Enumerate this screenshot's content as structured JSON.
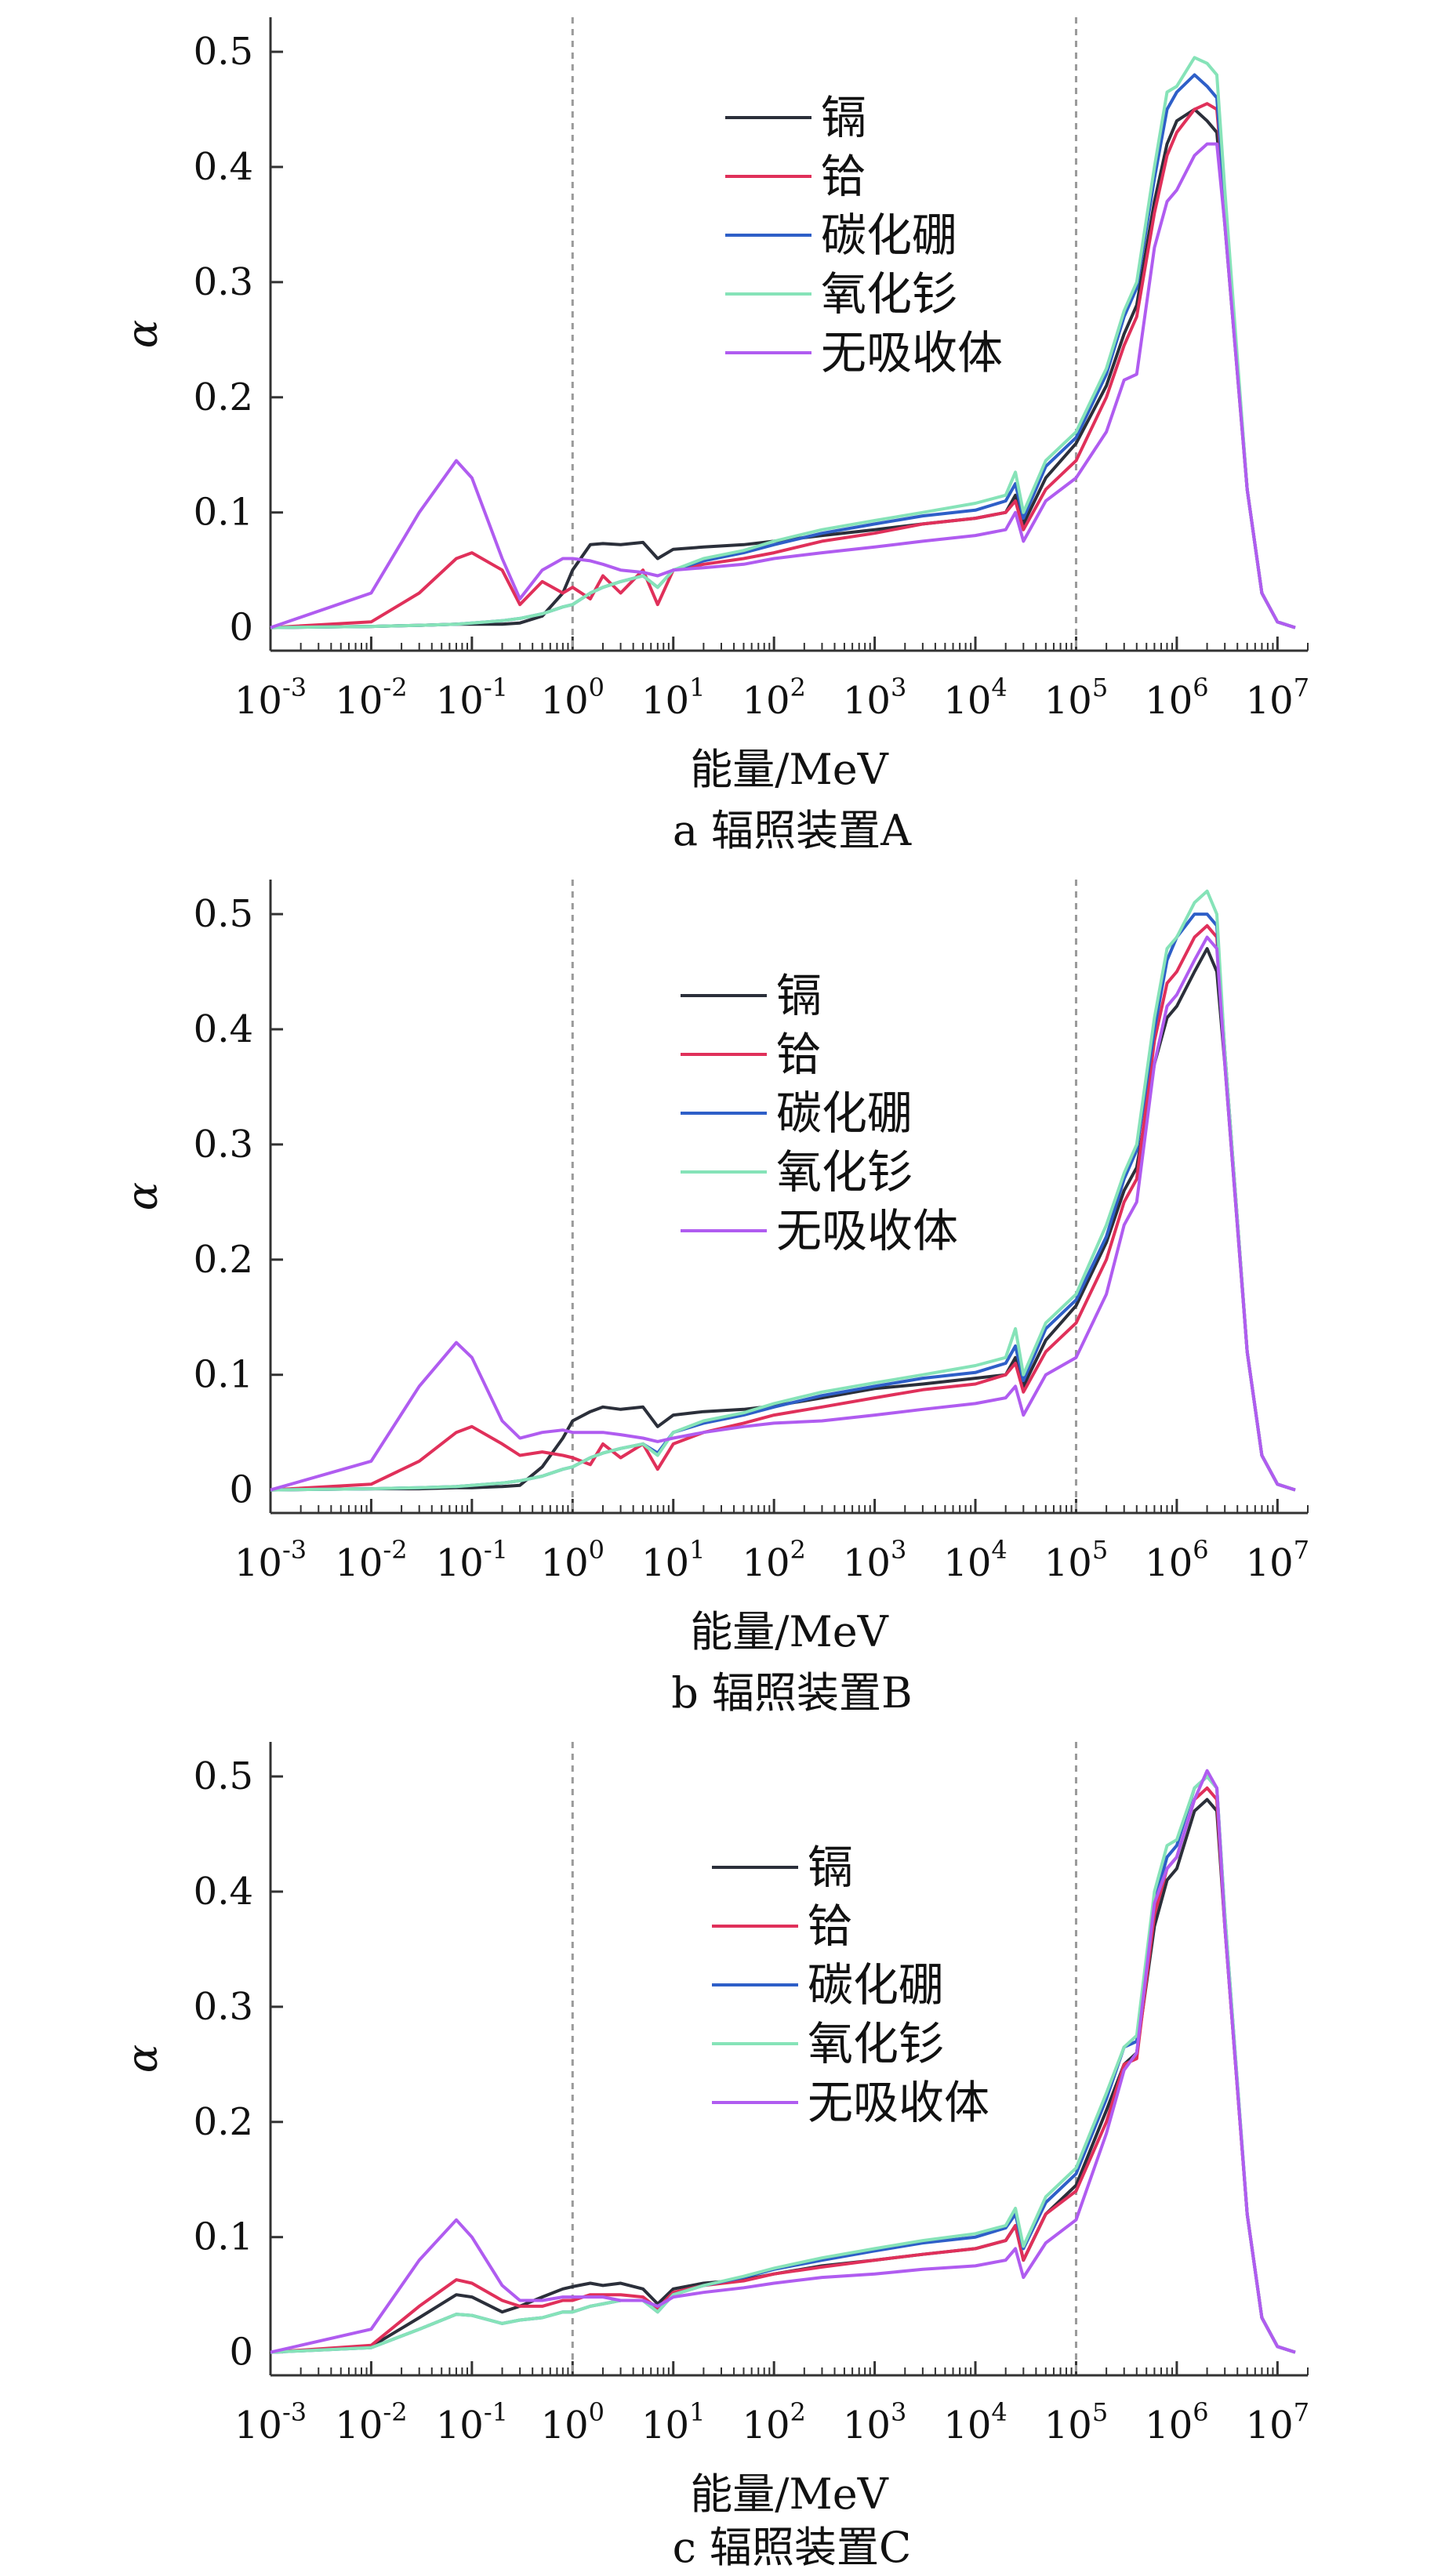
{
  "figure": {
    "colors": {
      "镉": "#2b2f3a",
      "铪": "#e0305a",
      "碳化硼": "#2e5fc8",
      "氧化钐": "#86e3b8",
      "无吸收体": "#b05cf0",
      "axis": "#333333",
      "reference_line": "#9a9a9a"
    }
  },
  "chart_data": [
    {
      "type": "line",
      "caption": "a  辐照装置A",
      "xlabel": "能量/MeV",
      "ylabel": "α",
      "xscale": "log",
      "xlim": [
        0.001,
        20000000
      ],
      "ylim": [
        -0.02,
        0.53
      ],
      "yticks": [
        "0",
        "0.1",
        "0.2",
        "0.3",
        "0.4",
        "0.5"
      ],
      "xticks": [
        "10^-3",
        "10^-2",
        "10^-1",
        "10^0",
        "10^1",
        "10^2",
        "10^3",
        "10^4",
        "10^5",
        "10^6",
        "10^7"
      ],
      "reference_lines_x": [
        1,
        100000
      ],
      "legend": [
        "镉",
        "铪",
        "碳化硼",
        "氧化钐",
        "无吸收体"
      ],
      "x": [
        0.001,
        0.01,
        0.03,
        0.07,
        0.1,
        0.2,
        0.3,
        0.5,
        0.8,
        1,
        1.5,
        2,
        3,
        5,
        7,
        10,
        20,
        50,
        100,
        300,
        1000,
        3000,
        10000,
        20000,
        25000,
        30000,
        50000,
        100000,
        200000,
        300000,
        400000,
        600000,
        800000,
        1000000,
        1500000,
        2000000,
        2500000,
        3000000,
        5000000,
        7000000,
        10000000,
        15000000
      ],
      "series": [
        {
          "name": "镉",
          "values": [
            0,
            0.001,
            0.002,
            0.003,
            0.003,
            0.003,
            0.004,
            0.01,
            0.03,
            0.05,
            0.072,
            0.073,
            0.072,
            0.074,
            0.06,
            0.068,
            0.07,
            0.072,
            0.075,
            0.08,
            0.085,
            0.09,
            0.095,
            0.1,
            0.115,
            0.09,
            0.13,
            0.16,
            0.21,
            0.255,
            0.28,
            0.37,
            0.42,
            0.44,
            0.45,
            0.44,
            0.43,
            0.35,
            0.12,
            0.03,
            0.005,
            0
          ]
        },
        {
          "name": "铪",
          "values": [
            0,
            0.005,
            0.03,
            0.06,
            0.065,
            0.05,
            0.02,
            0.04,
            0.03,
            0.035,
            0.025,
            0.045,
            0.03,
            0.05,
            0.02,
            0.05,
            0.055,
            0.06,
            0.065,
            0.075,
            0.082,
            0.09,
            0.095,
            0.1,
            0.11,
            0.085,
            0.12,
            0.145,
            0.2,
            0.245,
            0.27,
            0.36,
            0.41,
            0.43,
            0.45,
            0.455,
            0.45,
            0.37,
            0.12,
            0.03,
            0.005,
            0
          ]
        },
        {
          "name": "碳化硼",
          "values": [
            0,
            0.001,
            0.002,
            0.003,
            0.004,
            0.006,
            0.008,
            0.012,
            0.018,
            0.02,
            0.03,
            0.035,
            0.04,
            0.045,
            0.035,
            0.05,
            0.058,
            0.065,
            0.072,
            0.082,
            0.09,
            0.097,
            0.102,
            0.11,
            0.125,
            0.095,
            0.14,
            0.165,
            0.22,
            0.27,
            0.295,
            0.39,
            0.45,
            0.465,
            0.48,
            0.47,
            0.46,
            0.37,
            0.12,
            0.03,
            0.005,
            0
          ]
        },
        {
          "name": "氧化钐",
          "values": [
            0,
            0.001,
            0.002,
            0.003,
            0.004,
            0.006,
            0.008,
            0.012,
            0.018,
            0.02,
            0.03,
            0.035,
            0.04,
            0.045,
            0.035,
            0.05,
            0.06,
            0.067,
            0.075,
            0.085,
            0.093,
            0.1,
            0.108,
            0.115,
            0.135,
            0.1,
            0.145,
            0.17,
            0.225,
            0.275,
            0.3,
            0.4,
            0.465,
            0.47,
            0.495,
            0.49,
            0.48,
            0.38,
            0.12,
            0.03,
            0.005,
            0
          ]
        },
        {
          "name": "无吸收体",
          "values": [
            0,
            0.03,
            0.1,
            0.145,
            0.13,
            0.06,
            0.025,
            0.05,
            0.06,
            0.06,
            0.058,
            0.055,
            0.05,
            0.048,
            0.045,
            0.05,
            0.052,
            0.055,
            0.06,
            0.065,
            0.07,
            0.075,
            0.08,
            0.085,
            0.1,
            0.075,
            0.11,
            0.13,
            0.17,
            0.215,
            0.22,
            0.33,
            0.37,
            0.38,
            0.41,
            0.42,
            0.42,
            0.35,
            0.12,
            0.03,
            0.005,
            0
          ]
        }
      ]
    },
    {
      "type": "line",
      "caption": "b  辐照装置B",
      "xlabel": "能量/MeV",
      "ylabel": "α",
      "xscale": "log",
      "xlim": [
        0.001,
        20000000
      ],
      "ylim": [
        -0.02,
        0.53
      ],
      "yticks": [
        "0",
        "0.1",
        "0.2",
        "0.3",
        "0.4",
        "0.5"
      ],
      "xticks": [
        "10^-3",
        "10^-2",
        "10^-1",
        "10^0",
        "10^1",
        "10^2",
        "10^3",
        "10^4",
        "10^5",
        "10^6",
        "10^7"
      ],
      "reference_lines_x": [
        1,
        100000
      ],
      "legend": [
        "镉",
        "铪",
        "碳化硼",
        "氧化钐",
        "无吸收体"
      ],
      "x": [
        0.001,
        0.01,
        0.03,
        0.07,
        0.1,
        0.2,
        0.3,
        0.5,
        0.8,
        1,
        1.5,
        2,
        3,
        5,
        7,
        10,
        20,
        50,
        100,
        300,
        1000,
        3000,
        10000,
        20000,
        25000,
        30000,
        50000,
        100000,
        200000,
        300000,
        400000,
        600000,
        800000,
        1000000,
        1500000,
        2000000,
        2500000,
        3000000,
        5000000,
        7000000,
        10000000,
        15000000
      ],
      "series": [
        {
          "name": "镉",
          "values": [
            0,
            0.001,
            0.001,
            0.002,
            0.002,
            0.003,
            0.004,
            0.02,
            0.045,
            0.06,
            0.068,
            0.072,
            0.07,
            0.072,
            0.055,
            0.065,
            0.068,
            0.07,
            0.073,
            0.08,
            0.088,
            0.092,
            0.097,
            0.1,
            0.115,
            0.09,
            0.13,
            0.16,
            0.215,
            0.26,
            0.28,
            0.37,
            0.41,
            0.42,
            0.45,
            0.47,
            0.45,
            0.37,
            0.12,
            0.03,
            0.005,
            0
          ]
        },
        {
          "name": "铪",
          "values": [
            0,
            0.005,
            0.025,
            0.05,
            0.055,
            0.04,
            0.03,
            0.033,
            0.03,
            0.028,
            0.022,
            0.04,
            0.028,
            0.04,
            0.018,
            0.04,
            0.05,
            0.058,
            0.065,
            0.072,
            0.08,
            0.087,
            0.092,
            0.1,
            0.11,
            0.085,
            0.12,
            0.145,
            0.2,
            0.25,
            0.27,
            0.39,
            0.44,
            0.45,
            0.48,
            0.49,
            0.48,
            0.38,
            0.12,
            0.03,
            0.005,
            0
          ]
        },
        {
          "name": "碳化硼",
          "values": [
            0,
            0.001,
            0.002,
            0.003,
            0.004,
            0.006,
            0.008,
            0.012,
            0.018,
            0.02,
            0.028,
            0.032,
            0.036,
            0.04,
            0.032,
            0.05,
            0.058,
            0.065,
            0.072,
            0.082,
            0.09,
            0.097,
            0.102,
            0.11,
            0.125,
            0.095,
            0.14,
            0.165,
            0.22,
            0.27,
            0.295,
            0.4,
            0.46,
            0.48,
            0.5,
            0.5,
            0.49,
            0.38,
            0.12,
            0.03,
            0.005,
            0
          ]
        },
        {
          "name": "氧化钐",
          "values": [
            0,
            0.001,
            0.002,
            0.003,
            0.004,
            0.006,
            0.008,
            0.012,
            0.018,
            0.02,
            0.028,
            0.032,
            0.036,
            0.04,
            0.03,
            0.05,
            0.06,
            0.067,
            0.075,
            0.085,
            0.093,
            0.1,
            0.108,
            0.115,
            0.14,
            0.1,
            0.145,
            0.17,
            0.23,
            0.275,
            0.3,
            0.41,
            0.47,
            0.48,
            0.51,
            0.52,
            0.5,
            0.38,
            0.12,
            0.03,
            0.005,
            0
          ]
        },
        {
          "name": "无吸收体",
          "values": [
            0,
            0.025,
            0.09,
            0.128,
            0.115,
            0.06,
            0.045,
            0.05,
            0.052,
            0.05,
            0.05,
            0.05,
            0.048,
            0.045,
            0.042,
            0.045,
            0.05,
            0.055,
            0.058,
            0.06,
            0.065,
            0.07,
            0.075,
            0.08,
            0.09,
            0.065,
            0.1,
            0.115,
            0.17,
            0.23,
            0.25,
            0.37,
            0.42,
            0.43,
            0.46,
            0.48,
            0.47,
            0.37,
            0.12,
            0.03,
            0.005,
            0
          ]
        }
      ]
    },
    {
      "type": "line",
      "caption": "c  辐照装置C",
      "xlabel": "能量/MeV",
      "ylabel": "α",
      "xscale": "log",
      "xlim": [
        0.001,
        20000000
      ],
      "ylim": [
        -0.02,
        0.53
      ],
      "yticks": [
        "0",
        "0.1",
        "0.2",
        "0.3",
        "0.4",
        "0.5"
      ],
      "xticks": [
        "10^-3",
        "10^-2",
        "10^-1",
        "10^0",
        "10^1",
        "10^2",
        "10^3",
        "10^4",
        "10^5",
        "10^6",
        "10^7"
      ],
      "reference_lines_x": [
        1,
        100000
      ],
      "legend": [
        "镉",
        "铪",
        "碳化硼",
        "氧化钐",
        "无吸收体"
      ],
      "x": [
        0.001,
        0.01,
        0.03,
        0.07,
        0.1,
        0.2,
        0.3,
        0.5,
        0.8,
        1,
        1.5,
        2,
        3,
        5,
        7,
        10,
        20,
        50,
        100,
        300,
        1000,
        3000,
        10000,
        20000,
        25000,
        30000,
        50000,
        100000,
        200000,
        300000,
        400000,
        600000,
        800000,
        1000000,
        1500000,
        2000000,
        2500000,
        3000000,
        5000000,
        7000000,
        10000000,
        15000000
      ],
      "series": [
        {
          "name": "镉",
          "values": [
            0,
            0.005,
            0.03,
            0.05,
            0.048,
            0.035,
            0.04,
            0.048,
            0.055,
            0.057,
            0.06,
            0.058,
            0.06,
            0.055,
            0.042,
            0.055,
            0.06,
            0.063,
            0.068,
            0.075,
            0.08,
            0.085,
            0.09,
            0.097,
            0.11,
            0.08,
            0.12,
            0.145,
            0.21,
            0.25,
            0.26,
            0.37,
            0.41,
            0.42,
            0.47,
            0.48,
            0.47,
            0.37,
            0.12,
            0.03,
            0.005,
            0
          ]
        },
        {
          "name": "铪",
          "values": [
            0,
            0.006,
            0.04,
            0.063,
            0.06,
            0.045,
            0.04,
            0.04,
            0.045,
            0.045,
            0.05,
            0.05,
            0.05,
            0.048,
            0.038,
            0.052,
            0.058,
            0.062,
            0.068,
            0.074,
            0.08,
            0.085,
            0.09,
            0.097,
            0.11,
            0.08,
            0.12,
            0.14,
            0.2,
            0.25,
            0.255,
            0.38,
            0.42,
            0.43,
            0.48,
            0.49,
            0.48,
            0.37,
            0.12,
            0.03,
            0.005,
            0
          ]
        },
        {
          "name": "碳化硼",
          "values": [
            0,
            0.004,
            0.02,
            0.033,
            0.032,
            0.025,
            0.028,
            0.03,
            0.035,
            0.035,
            0.04,
            0.042,
            0.045,
            0.045,
            0.035,
            0.05,
            0.058,
            0.065,
            0.072,
            0.08,
            0.088,
            0.095,
            0.1,
            0.108,
            0.12,
            0.09,
            0.13,
            0.155,
            0.22,
            0.265,
            0.27,
            0.39,
            0.43,
            0.44,
            0.49,
            0.5,
            0.49,
            0.38,
            0.12,
            0.03,
            0.005,
            0
          ]
        },
        {
          "name": "氧化钐",
          "values": [
            0,
            0.004,
            0.02,
            0.033,
            0.032,
            0.025,
            0.028,
            0.03,
            0.035,
            0.035,
            0.04,
            0.042,
            0.045,
            0.045,
            0.035,
            0.05,
            0.058,
            0.066,
            0.073,
            0.082,
            0.09,
            0.097,
            0.103,
            0.11,
            0.125,
            0.092,
            0.135,
            0.16,
            0.225,
            0.265,
            0.275,
            0.4,
            0.44,
            0.445,
            0.49,
            0.5,
            0.49,
            0.38,
            0.12,
            0.03,
            0.005,
            0
          ]
        },
        {
          "name": "无吸收体",
          "values": [
            0,
            0.02,
            0.08,
            0.115,
            0.1,
            0.058,
            0.045,
            0.045,
            0.048,
            0.048,
            0.048,
            0.048,
            0.045,
            0.045,
            0.04,
            0.048,
            0.052,
            0.056,
            0.06,
            0.065,
            0.068,
            0.072,
            0.075,
            0.08,
            0.09,
            0.065,
            0.095,
            0.115,
            0.19,
            0.245,
            0.26,
            0.39,
            0.42,
            0.43,
            0.48,
            0.505,
            0.49,
            0.37,
            0.12,
            0.03,
            0.005,
            0
          ]
        }
      ]
    }
  ]
}
